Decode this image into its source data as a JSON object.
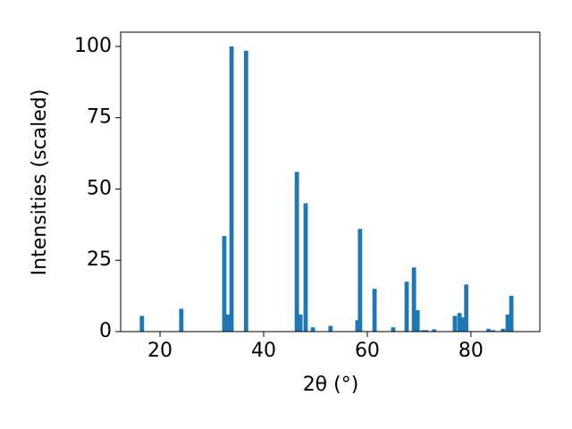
{
  "chart_data": {
    "type": "bar",
    "x_label": "2θ (°)",
    "y_label": "Intensities (scaled)",
    "x": [
      16.5,
      24.1,
      32.4,
      33.1,
      33.8,
      36.6,
      46.4,
      47.1,
      48.1,
      49.5,
      52.9,
      58.1,
      58.6,
      61.4,
      65.0,
      67.6,
      69.0,
      69.7,
      70.7,
      71.4,
      72.9,
      76.9,
      77.8,
      78.6,
      79.1,
      83.4,
      84.3,
      86.2,
      87.1,
      87.8
    ],
    "values": [
      5.5,
      8,
      33.5,
      6,
      100,
      98.5,
      56,
      6,
      45,
      1.5,
      2,
      4,
      36,
      15,
      1.5,
      17.5,
      22.5,
      7.5,
      0.5,
      0.5,
      0.8,
      5.5,
      6.5,
      5,
      16.5,
      1,
      0.5,
      1,
      6,
      12.5
    ],
    "color": "#1f77b4",
    "xlim": [
      12.4,
      93.3
    ],
    "ylim": [
      0,
      105
    ],
    "xticks": [
      20,
      40,
      60,
      80
    ],
    "yticks": [
      0,
      25,
      50,
      75,
      100
    ],
    "grid": false
  }
}
